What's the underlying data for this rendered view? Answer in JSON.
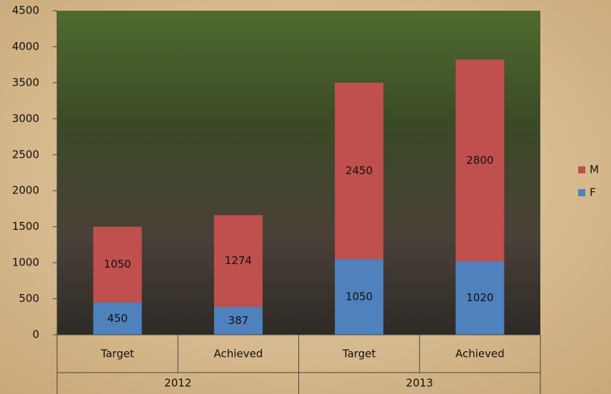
{
  "chart_data": {
    "type": "stacked_bar",
    "categories": [
      "Target",
      "Achieved",
      "Target",
      "Achieved"
    ],
    "groups": [
      "2012",
      "2013"
    ],
    "series": [
      {
        "name": "F",
        "color": "#4f81bd",
        "values": [
          450,
          387,
          1050,
          1020
        ]
      },
      {
        "name": "M",
        "color": "#c0504d",
        "values": [
          1050,
          1274,
          2450,
          2800
        ]
      }
    ],
    "ylim": [
      0,
      4500
    ],
    "yticks": [
      0,
      500,
      1000,
      1500,
      2000,
      2500,
      3000,
      3500,
      4000,
      4500
    ],
    "legend": "right"
  }
}
